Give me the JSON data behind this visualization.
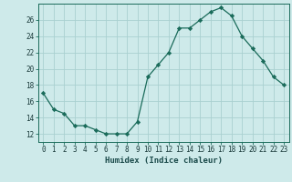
{
  "x": [
    0,
    1,
    2,
    3,
    4,
    5,
    6,
    7,
    8,
    9,
    10,
    11,
    12,
    13,
    14,
    15,
    16,
    17,
    18,
    19,
    20,
    21,
    22,
    23
  ],
  "y": [
    17.0,
    15.0,
    14.5,
    13.0,
    13.0,
    12.5,
    12.0,
    12.0,
    12.0,
    13.5,
    19.0,
    20.5,
    22.0,
    25.0,
    25.0,
    26.0,
    27.0,
    27.5,
    26.5,
    24.0,
    22.5,
    21.0,
    19.0,
    18.0
  ],
  "xlabel": "Humidex (Indice chaleur)",
  "xlim": [
    -0.5,
    23.5
  ],
  "ylim": [
    11,
    28
  ],
  "yticks": [
    12,
    14,
    16,
    18,
    20,
    22,
    24,
    26
  ],
  "xticks": [
    0,
    1,
    2,
    3,
    4,
    5,
    6,
    7,
    8,
    9,
    10,
    11,
    12,
    13,
    14,
    15,
    16,
    17,
    18,
    19,
    20,
    21,
    22,
    23
  ],
  "line_color": "#1a6b5a",
  "marker": "D",
  "marker_size": 2.2,
  "bg_color": "#ceeaea",
  "grid_color": "#aad0d0",
  "tick_fontsize": 5.5,
  "label_fontsize": 6.5
}
